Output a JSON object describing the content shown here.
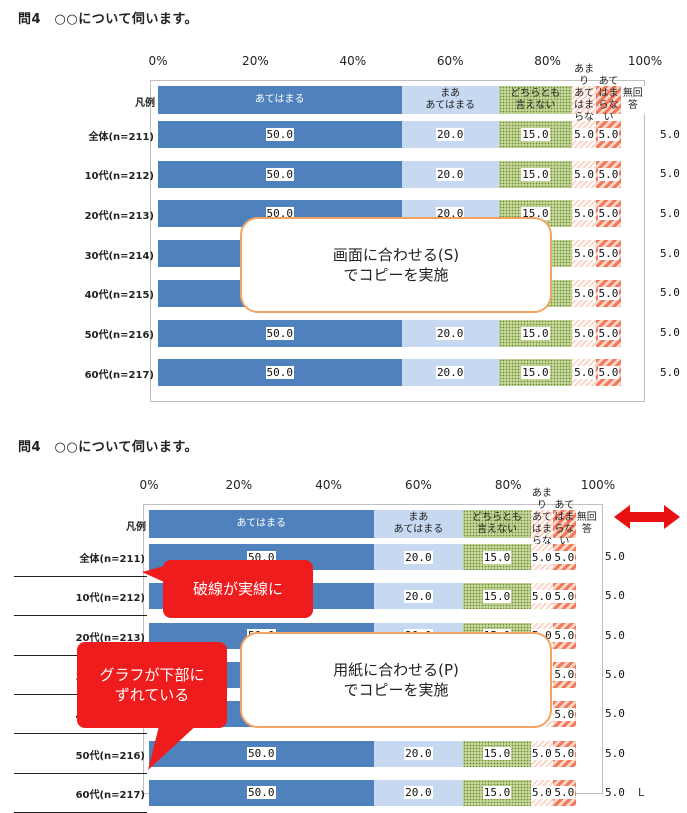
{
  "top": {
    "question": "問4　○○について伺います。",
    "callout_lines": [
      "画面に合わせる(S)",
      "でコピーを実施"
    ]
  },
  "bottom": {
    "question": "問4　○○について伺います。",
    "callout_lines": [
      "用紙に合わせる(P)",
      "でコピーを実施"
    ],
    "note_dashed_line": "破線が実線に",
    "note_shift_lines": [
      "グラフが下部に",
      "ずれている"
    ],
    "corner_mark": "L",
    "arrow_color": "#e81010"
  },
  "chart_data": {
    "type": "bar",
    "stacked": true,
    "orientation": "horizontal",
    "xlim": [
      0,
      100
    ],
    "tick_labels": [
      "0%",
      "20%",
      "40%",
      "60%",
      "80%",
      "100%"
    ],
    "legend_title": "凡例",
    "legend": [
      {
        "name": "あてはまる",
        "color": "#4f81bd"
      },
      {
        "name": "まあ\nあてはまる",
        "color": "#c6d9f1"
      },
      {
        "name": "どちらとも\n言えない",
        "color": "#c4d79b"
      },
      {
        "name": "あまり\nあてはまらない",
        "color": "#fbd5c8"
      },
      {
        "name": "あてはまらない",
        "color": "#f07a5a"
      },
      {
        "name": "無回答",
        "color": "#ffffff"
      }
    ],
    "categories": [
      "全体(n=211)",
      "10代(n=212)",
      "20代(n=213)",
      "30代(n=214)",
      "40代(n=215)",
      "50代(n=216)",
      "60代(n=217)"
    ],
    "series": [
      {
        "name": "あてはまる",
        "values": [
          50.0,
          50.0,
          50.0,
          50.0,
          50.0,
          50.0,
          50.0
        ]
      },
      {
        "name": "まああてはまる",
        "values": [
          20.0,
          20.0,
          20.0,
          20.0,
          20.0,
          20.0,
          20.0
        ]
      },
      {
        "name": "どちらとも言えない",
        "values": [
          15.0,
          15.0,
          15.0,
          15.0,
          15.0,
          15.0,
          15.0
        ]
      },
      {
        "name": "あまりあてはまらない",
        "values": [
          5.0,
          5.0,
          5.0,
          5.0,
          5.0,
          5.0,
          5.0
        ]
      },
      {
        "name": "あてはまらない",
        "values": [
          5.0,
          5.0,
          5.0,
          5.0,
          5.0,
          5.0,
          5.0
        ]
      },
      {
        "name": "無回答",
        "values": [
          5.0,
          5.0,
          5.0,
          5.0,
          5.0,
          5.0,
          5.0
        ]
      }
    ],
    "value_format": "0.0"
  }
}
